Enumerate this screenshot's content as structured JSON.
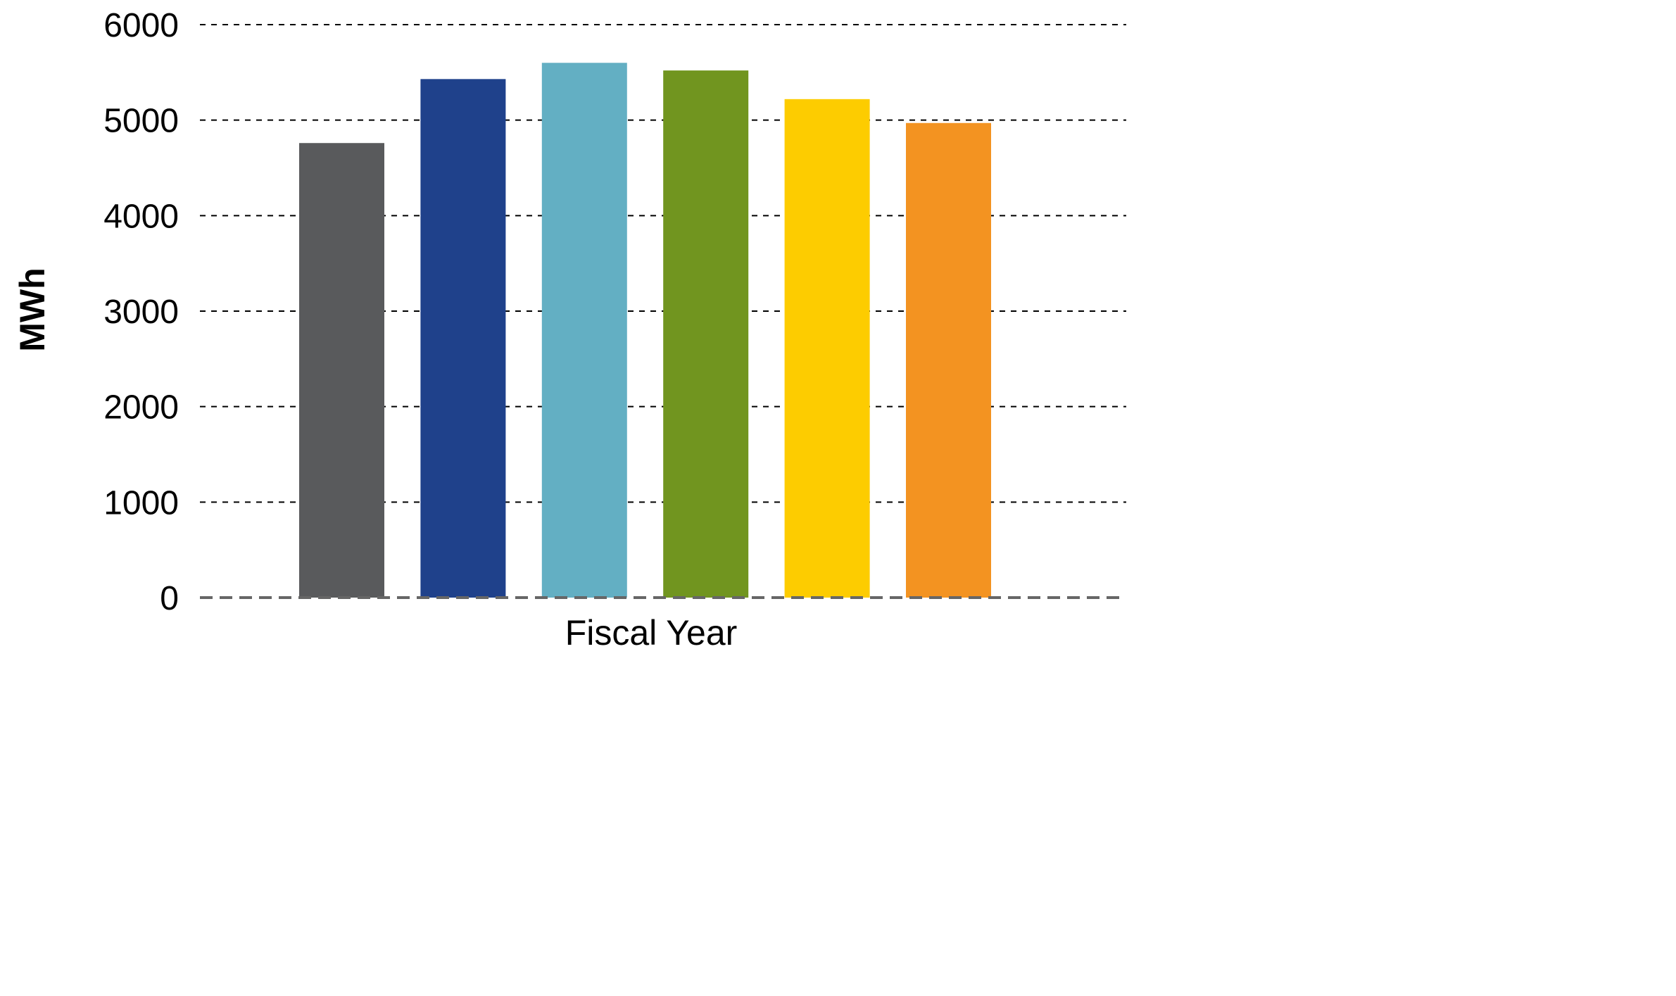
{
  "chart_data": {
    "type": "bar",
    "title": "",
    "xlabel": "Fiscal Year",
    "ylabel": "MWh",
    "ylim": [
      0,
      6000
    ],
    "yticks": [
      0,
      1000,
      2000,
      3000,
      4000,
      5000,
      6000
    ],
    "grid": true,
    "legend": "none",
    "categories": [
      "",
      "",
      "",
      "",
      "",
      ""
    ],
    "values": [
      4760,
      5430,
      5600,
      5520,
      5220,
      4970
    ],
    "colors": [
      "#595a5c",
      "#1f418b",
      "#63afc3",
      "#71951f",
      "#fdcc00",
      "#f39321"
    ]
  }
}
